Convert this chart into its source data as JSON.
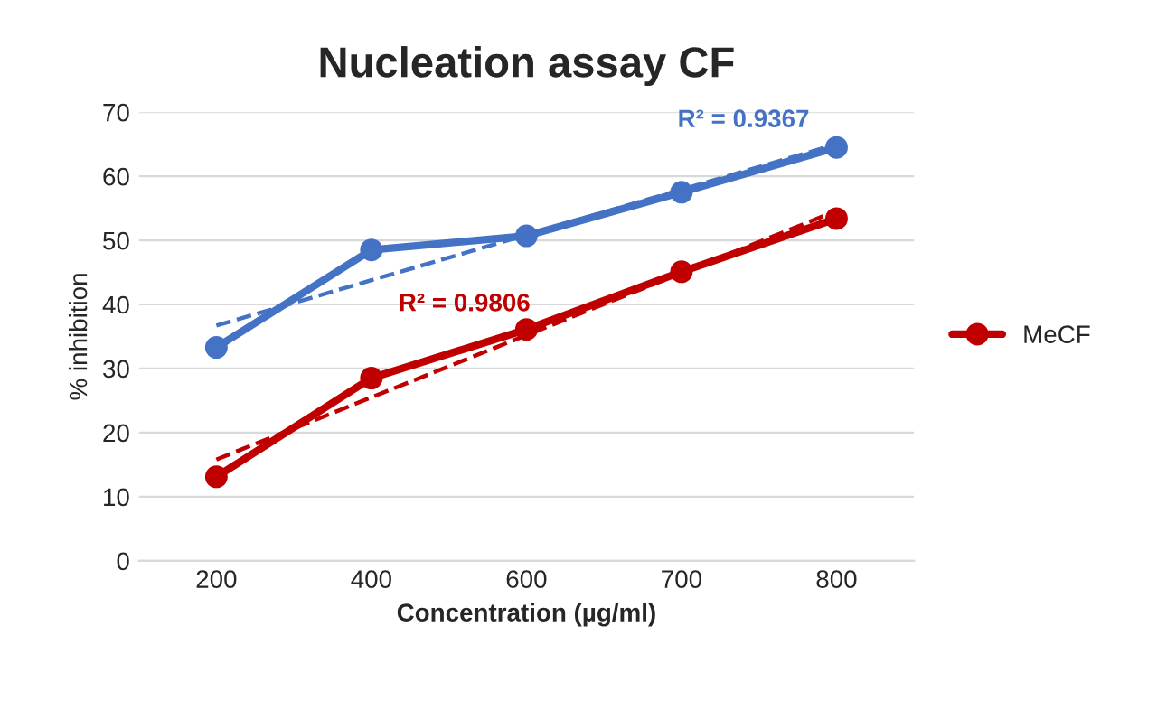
{
  "chart_data": {
    "type": "line",
    "title": "Nucleation assay CF",
    "xlabel": "Concentration (µg/ml)",
    "ylabel": "% inhibition",
    "categories": [
      "200",
      "400",
      "600",
      "700",
      "800"
    ],
    "series": [
      {
        "color": "#4472c4",
        "values": [
          33.3,
          48.5,
          50.7,
          57.5,
          64.5
        ],
        "marker": "circle",
        "line_style": "solid"
      },
      {
        "name": "MeCF",
        "color": "#c00000",
        "values": [
          13.1,
          28.5,
          36.1,
          45.1,
          53.4
        ],
        "marker": "circle",
        "line_style": "solid"
      },
      {
        "color": "#4472c4",
        "x": [
          "200",
          "800"
        ],
        "values": [
          36.7,
          65.0
        ],
        "marker": "none",
        "line_style": "dashed"
      },
      {
        "color": "#c00000",
        "x": [
          "200",
          "800"
        ],
        "values": [
          15.8,
          54.6
        ],
        "marker": "none",
        "line_style": "dashed"
      }
    ],
    "annotations": [
      "R² = 0.9367",
      "R² = 0.9806"
    ],
    "ylim": [
      0,
      70
    ],
    "yticks": [
      0,
      10,
      20,
      30,
      40,
      50,
      60,
      70
    ],
    "grid": "y",
    "legend": "right"
  }
}
